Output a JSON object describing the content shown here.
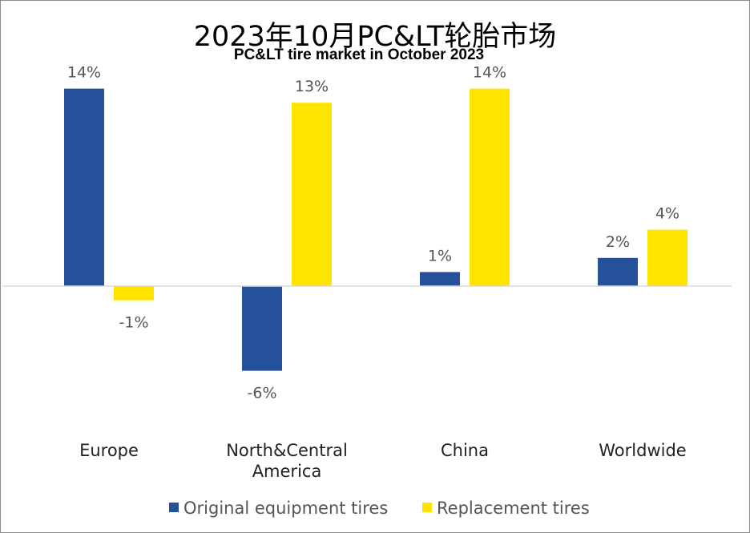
{
  "chart_data": {
    "type": "bar",
    "title": "2023年10月PC&LT轮胎市场",
    "subtitle": "PC&LT tire market in October 2023",
    "categories": [
      [
        "Europe"
      ],
      [
        "North&Central",
        "America"
      ],
      [
        "China"
      ],
      [
        "Worldwide"
      ]
    ],
    "series": [
      {
        "name": "Original equipment tires",
        "color": "#25519b",
        "values": [
          14,
          -6,
          1,
          2
        ],
        "labels": [
          "14%",
          "-6%",
          "1%",
          "2%"
        ]
      },
      {
        "name": "Replacement tires",
        "color": "#ffe400",
        "values": [
          -1,
          13,
          14,
          4
        ],
        "labels": [
          "-1%",
          "13%",
          "14%",
          "4%"
        ]
      }
    ],
    "ylim": [
      -10,
      16
    ],
    "grid": false,
    "legend_position": "bottom"
  }
}
